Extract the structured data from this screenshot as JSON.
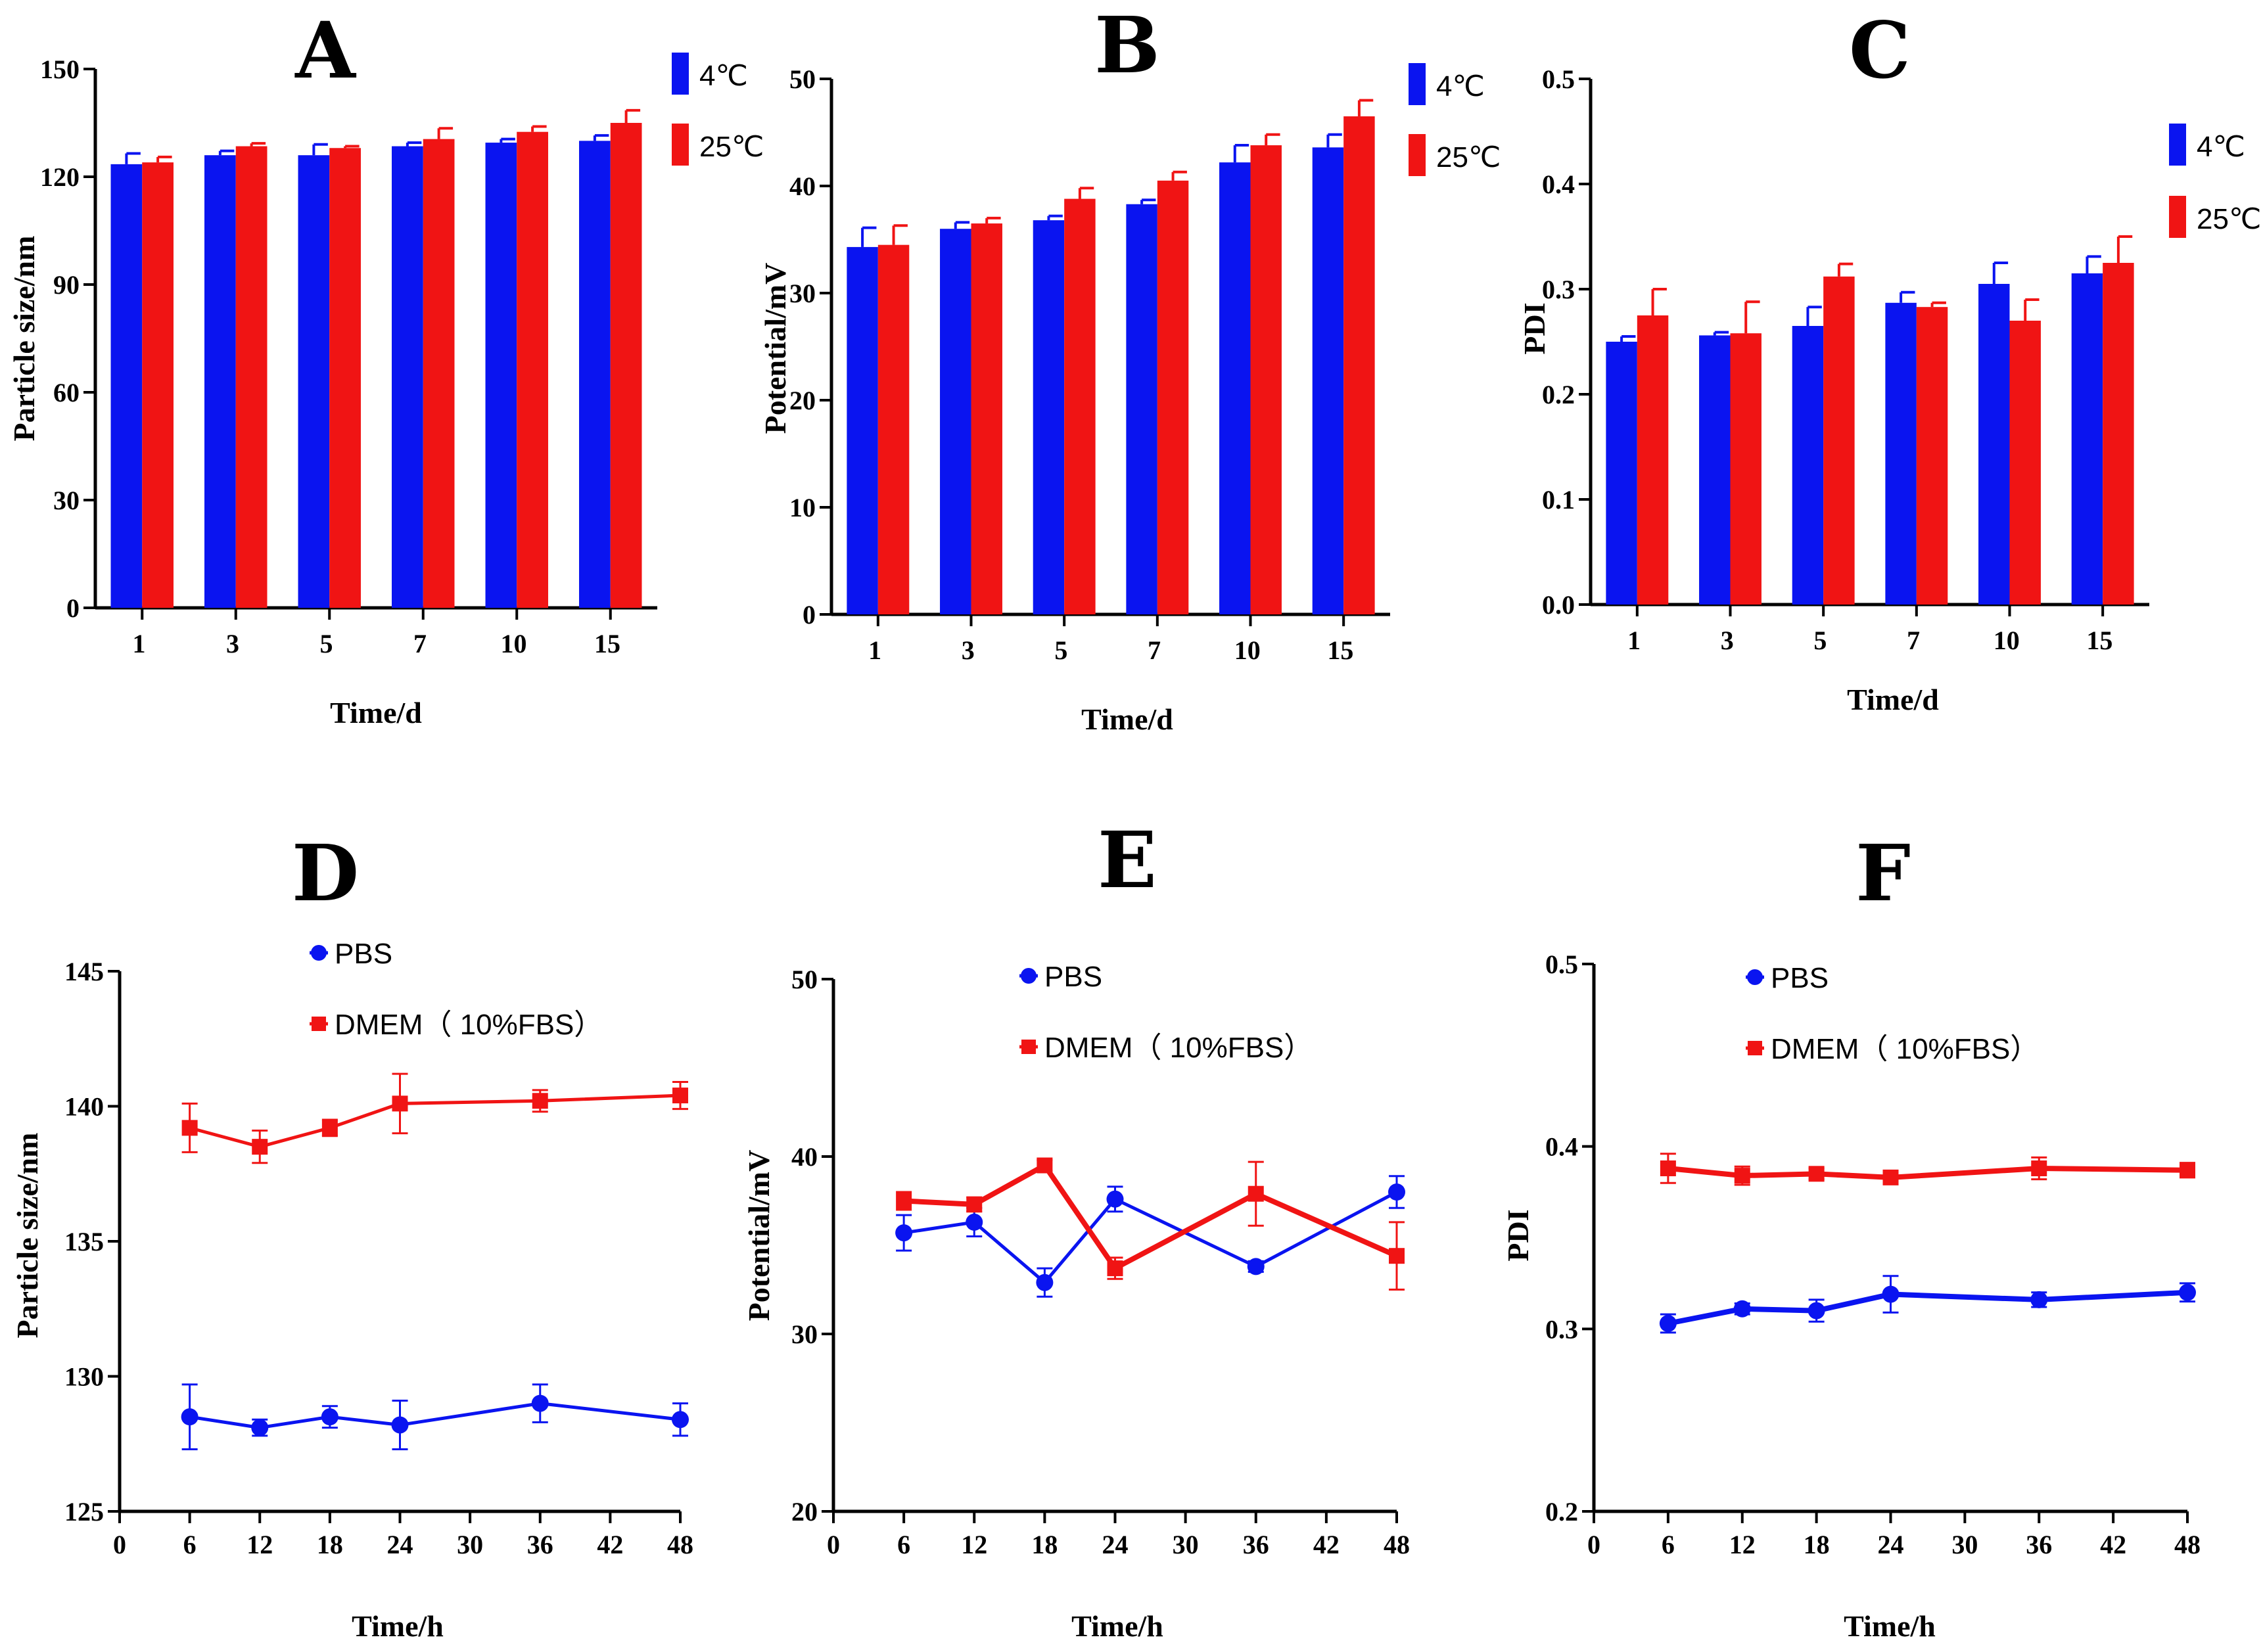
{
  "colors": {
    "blue": "#0a14f0",
    "red": "#f01414",
    "axis": "#000000"
  },
  "chart_data": [
    {
      "id": "A",
      "type": "bar",
      "panel_label": "A",
      "categories": [
        "1",
        "3",
        "5",
        "7",
        "10",
        "15"
      ],
      "series": [
        {
          "name": "4℃",
          "color": "#0a14f0",
          "values": [
            123.5,
            126.0,
            126.0,
            128.5,
            129.5,
            130.0
          ],
          "errors": [
            3.0,
            1.2,
            3.0,
            1.0,
            1.0,
            1.5
          ]
        },
        {
          "name": "25℃",
          "color": "#f01414",
          "values": [
            124.0,
            128.5,
            128.0,
            130.5,
            132.5,
            135.0
          ],
          "errors": [
            1.5,
            0.8,
            0.5,
            3.0,
            1.5,
            3.5
          ]
        }
      ],
      "ylim": [
        0,
        150
      ],
      "yticks": [
        0,
        30,
        60,
        90,
        120,
        150
      ],
      "ylabel": "Particle size/nm",
      "xlabel": "Time/d",
      "legend_position": "top-right"
    },
    {
      "id": "B",
      "type": "bar",
      "panel_label": "B",
      "categories": [
        "1",
        "3",
        "5",
        "7",
        "10",
        "15"
      ],
      "series": [
        {
          "name": "4℃",
          "color": "#0a14f0",
          "values": [
            34.3,
            36.0,
            36.8,
            38.3,
            42.2,
            43.6
          ],
          "errors": [
            1.8,
            0.6,
            0.4,
            0.4,
            1.6,
            1.2
          ]
        },
        {
          "name": "25℃",
          "color": "#f01414",
          "values": [
            34.5,
            36.5,
            38.8,
            40.5,
            43.8,
            46.5
          ],
          "errors": [
            1.8,
            0.5,
            1.0,
            0.8,
            1.0,
            1.5
          ]
        }
      ],
      "ylim": [
        0,
        50
      ],
      "yticks": [
        0,
        10,
        20,
        30,
        40,
        50
      ],
      "ylabel": "Potential/mV",
      "xlabel": "Time/d",
      "legend_position": "top-right"
    },
    {
      "id": "C",
      "type": "bar",
      "panel_label": "C",
      "categories": [
        "1",
        "3",
        "5",
        "7",
        "10",
        "15"
      ],
      "series": [
        {
          "name": "4℃",
          "color": "#0a14f0",
          "values": [
            0.25,
            0.256,
            0.265,
            0.287,
            0.305,
            0.315
          ],
          "errors": [
            0.005,
            0.003,
            0.018,
            0.01,
            0.02,
            0.016
          ]
        },
        {
          "name": "25℃",
          "color": "#f01414",
          "values": [
            0.275,
            0.258,
            0.312,
            0.283,
            0.27,
            0.325
          ],
          "errors": [
            0.025,
            0.03,
            0.012,
            0.004,
            0.02,
            0.025
          ]
        }
      ],
      "ylim": [
        0,
        0.5
      ],
      "yticks": [
        0.0,
        0.1,
        0.2,
        0.3,
        0.4,
        0.5
      ],
      "ytick_labels": [
        "0.0",
        "0.1",
        "0.2",
        "0.3",
        "0.4",
        "0.5"
      ],
      "ylabel": "PDI",
      "xlabel": "Time/d",
      "legend_position": "top-right"
    },
    {
      "id": "D",
      "type": "line",
      "panel_label": "D",
      "x": [
        6,
        12,
        18,
        24,
        36,
        48
      ],
      "series": [
        {
          "name": "PBS",
          "color": "#0a14f0",
          "marker": "circle",
          "values": [
            128.5,
            128.1,
            128.5,
            128.2,
            129.0,
            128.4
          ],
          "errors": [
            1.2,
            0.3,
            0.4,
            0.9,
            0.7,
            0.6
          ]
        },
        {
          "name": "DMEM（ 10%FBS）",
          "color": "#f01414",
          "marker": "square",
          "values": [
            139.2,
            138.5,
            139.2,
            140.1,
            140.2,
            140.4
          ],
          "errors": [
            0.9,
            0.6,
            0.3,
            1.1,
            0.4,
            0.5
          ]
        }
      ],
      "xlim": [
        0,
        48
      ],
      "xticks": [
        0,
        6,
        12,
        18,
        24,
        30,
        36,
        42,
        48
      ],
      "ylim": [
        125,
        145
      ],
      "yticks": [
        125,
        130,
        135,
        140,
        145
      ],
      "ylabel": "Particle size/nm",
      "xlabel": "Time/h",
      "legend_position": "top-center"
    },
    {
      "id": "E",
      "type": "line",
      "panel_label": "E",
      "x": [
        6,
        12,
        18,
        24,
        36,
        48
      ],
      "series": [
        {
          "name": "PBS",
          "color": "#0a14f0",
          "marker": "circle",
          "values": [
            35.7,
            36.3,
            32.9,
            37.6,
            33.8,
            38.0
          ],
          "errors": [
            1.0,
            0.8,
            0.8,
            0.7,
            0.3,
            0.9
          ]
        },
        {
          "name": "DMEM（ 10%FBS）",
          "color": "#f01414",
          "marker": "square",
          "values": [
            37.5,
            37.3,
            39.5,
            33.7,
            37.9,
            34.4
          ],
          "errors": [
            0.5,
            0.4,
            0.3,
            0.6,
            1.8,
            1.9
          ]
        }
      ],
      "xlim": [
        0,
        48
      ],
      "xticks": [
        0,
        6,
        12,
        18,
        24,
        30,
        36,
        42,
        48
      ],
      "ylim": [
        20,
        50
      ],
      "yticks": [
        20,
        30,
        40,
        50
      ],
      "ylabel": "Potential/mV",
      "xlabel": "Time/h",
      "legend_position": "top-center"
    },
    {
      "id": "F",
      "type": "line",
      "panel_label": "F",
      "x": [
        6,
        12,
        18,
        24,
        36,
        48
      ],
      "series": [
        {
          "name": "PBS",
          "color": "#0a14f0",
          "marker": "circle",
          "values": [
            0.303,
            0.311,
            0.31,
            0.319,
            0.316,
            0.32
          ],
          "errors": [
            0.005,
            0.003,
            0.006,
            0.01,
            0.004,
            0.005
          ]
        },
        {
          "name": "DMEM（ 10%FBS）",
          "color": "#f01414",
          "marker": "square",
          "values": [
            0.388,
            0.384,
            0.385,
            0.383,
            0.388,
            0.387
          ],
          "errors": [
            0.008,
            0.005,
            0.003,
            0.003,
            0.006,
            0.004
          ]
        }
      ],
      "xlim": [
        0,
        48
      ],
      "xticks": [
        0,
        6,
        12,
        18,
        24,
        30,
        36,
        42,
        48
      ],
      "ylim": [
        0.2,
        0.5
      ],
      "yticks": [
        0.2,
        0.3,
        0.4,
        0.5
      ],
      "ytick_labels": [
        "0.2",
        "0.3",
        "0.4",
        "0.5"
      ],
      "ylabel": "PDI",
      "xlabel": "Time/h",
      "legend_position": "top-center"
    }
  ]
}
